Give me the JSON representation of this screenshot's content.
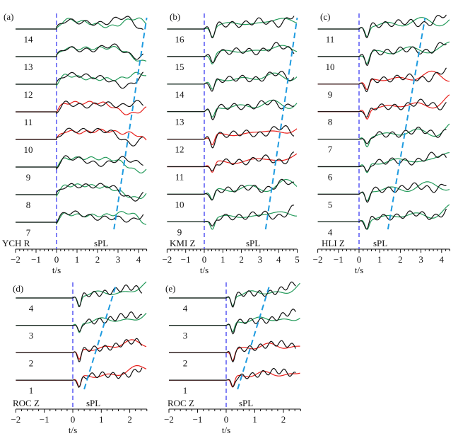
{
  "chart_data": [
    {
      "type": "line",
      "panel": "(a)",
      "station": "YCH R",
      "phase_label": "sPL",
      "xlabel": "t/s",
      "xlim": [
        -2,
        4.4
      ],
      "xticks": [
        -2,
        -1,
        0,
        1,
        2,
        3,
        4
      ],
      "traces": [
        "14",
        "13",
        "12",
        "11",
        "10",
        "9",
        "8",
        "7"
      ],
      "synthetic_colors": [
        "green",
        "green",
        "green",
        "red",
        "red",
        "green",
        "green",
        "green"
      ],
      "onset_t": 0,
      "spl_line_t": [
        2.8,
        4.4
      ]
    },
    {
      "type": "line",
      "panel": "(b)",
      "station": "KMI Z",
      "phase_label": "sPL",
      "xlabel": "t/s",
      "xlim": [
        -2,
        5
      ],
      "xticks": [
        -2,
        -1,
        0,
        1,
        2,
        3,
        4,
        5
      ],
      "traces": [
        "16",
        "15",
        "14",
        "13",
        "12",
        "11",
        "10",
        "9"
      ],
      "synthetic_colors": [
        "green",
        "green",
        "green",
        "green",
        "red",
        "red",
        "green",
        "green"
      ],
      "onset_t": 0,
      "spl_line_t": [
        3.3,
        5.0
      ]
    },
    {
      "type": "line",
      "panel": "(c)",
      "station": "HLI Z",
      "phase_label": "sPL",
      "xlabel": "t/s",
      "xlim": [
        -2,
        4.4
      ],
      "xticks": [
        -2,
        -1,
        0,
        1,
        2,
        3,
        4
      ],
      "traces": [
        "11",
        "10",
        "9",
        "8",
        "7",
        "6",
        "5",
        "4"
      ],
      "synthetic_colors": [
        "green",
        "green",
        "red",
        "red",
        "green",
        "green",
        "green",
        "green"
      ],
      "onset_t": 0,
      "spl_line_t": [
        1.4,
        3.2
      ]
    },
    {
      "type": "line",
      "panel": "(d)",
      "station": "ROC Z",
      "phase_label": "sPL",
      "xlabel": "t/s",
      "xlim": [
        -2,
        2.6
      ],
      "xticks": [
        -2,
        -1,
        0,
        1,
        2
      ],
      "traces": [
        "4",
        "3",
        "2",
        "1"
      ],
      "synthetic_colors": [
        "green",
        "green",
        "red",
        "red"
      ],
      "onset_t": 0,
      "spl_line_t": [
        0.4,
        1.5
      ]
    },
    {
      "type": "line",
      "panel": "(e)",
      "station": "ROC Z",
      "phase_label": "sPL",
      "xlabel": "t/s",
      "xlim": [
        -2,
        2.6
      ],
      "xticks": [
        -2,
        -1,
        0,
        1,
        2
      ],
      "traces": [
        "4",
        "3",
        "2",
        "1"
      ],
      "synthetic_colors": [
        "green",
        "green",
        "red",
        "red"
      ],
      "onset_t": 0,
      "spl_line_t": [
        0.4,
        1.5
      ]
    }
  ],
  "colors": {
    "observed": "#111111",
    "green": "#239a5a",
    "red": "#e8201c",
    "onset_line": "#3b3bf0",
    "spl_line": "#1e9be0"
  }
}
